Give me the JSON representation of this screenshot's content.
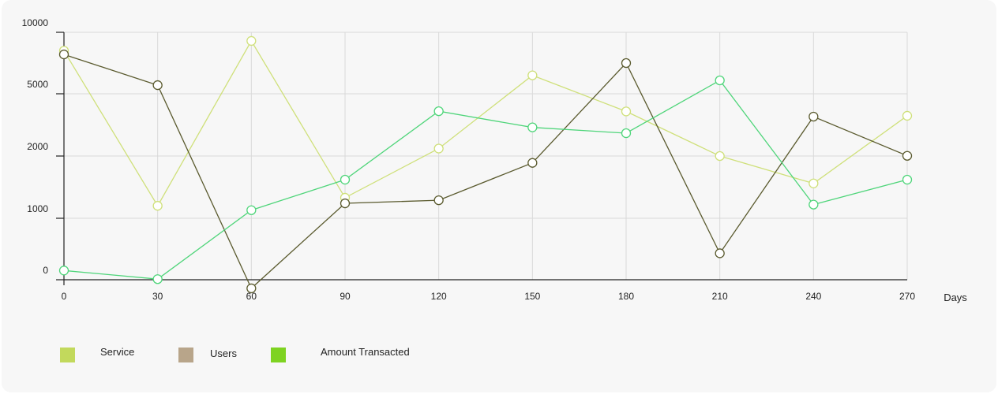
{
  "chart_data": {
    "type": "line",
    "x": [
      0,
      30,
      60,
      90,
      120,
      150,
      180,
      210,
      240,
      270
    ],
    "xlabel": "Days",
    "ylabel": "",
    "y_ticks": [
      "0",
      "1000",
      "2000",
      "5000",
      "10000"
    ],
    "xlim": [
      0,
      270
    ],
    "grid": true,
    "legend_placement": "bottom-left",
    "series": [
      {
        "name": "Service",
        "color": "#cfe07a",
        "swatch": "#c2d95c",
        "values": [
          8500,
          1200,
          9300,
          1330,
          2360,
          6500,
          4150,
          2000,
          1560,
          3940
        ]
      },
      {
        "name": "Users",
        "color": "#5a5a2e",
        "swatch": "#b8a58a",
        "values": [
          8200,
          5700,
          -140,
          1240,
          1290,
          1890,
          7500,
          430,
          3900,
          2010
        ]
      },
      {
        "name": "Amount Transacted",
        "color": "#4fd57a",
        "swatch": "#7ed321",
        "values": [
          150,
          10,
          1130,
          1620,
          4160,
          3380,
          3100,
          6090,
          1220,
          1620
        ]
      }
    ]
  }
}
